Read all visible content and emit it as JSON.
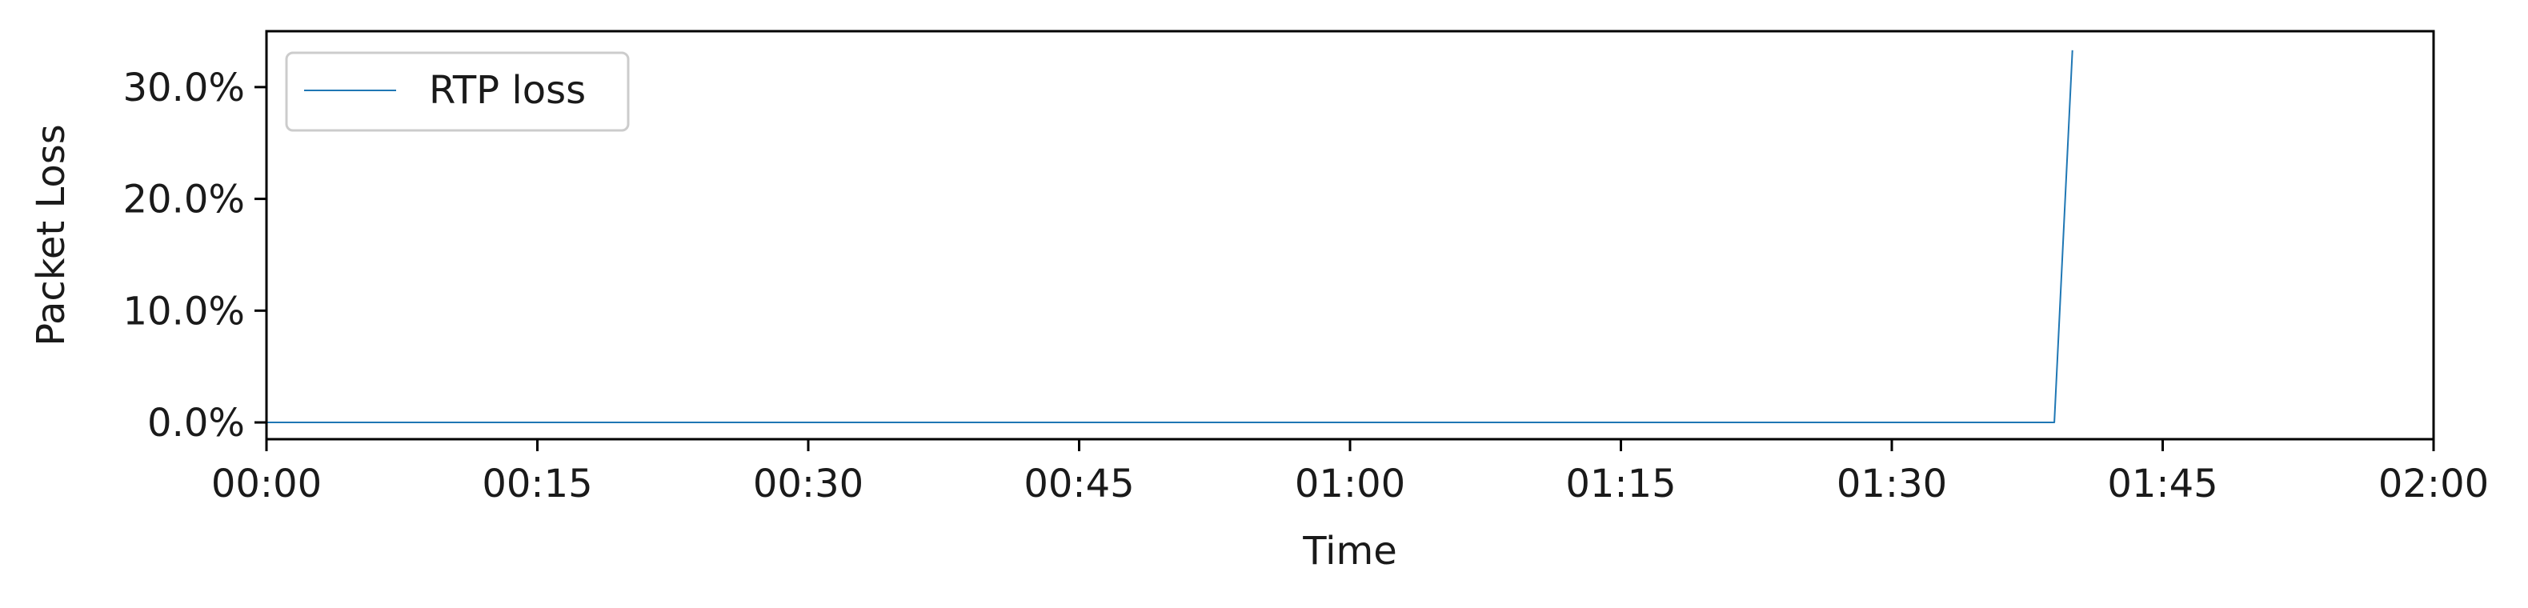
{
  "chart_data": {
    "type": "line",
    "title": "",
    "xlabel": "Time",
    "ylabel": "Packet Loss",
    "x_unit": "hh:mm",
    "xlim": [
      "00:00",
      "02:00"
    ],
    "ylim": [
      -1.5,
      35.0
    ],
    "x_ticks": [
      "00:00",
      "00:15",
      "00:30",
      "00:45",
      "01:00",
      "01:15",
      "01:30",
      "01:45",
      "02:00"
    ],
    "y_ticks": [
      0.0,
      10.0,
      20.0,
      30.0
    ],
    "y_tick_labels": [
      "0.0%",
      "10.0%",
      "20.0%",
      "30.0%"
    ],
    "grid": false,
    "legend_position": "top-left",
    "series": [
      {
        "name": "RTP loss",
        "color": "#1f77b4",
        "x": [
          "00:00",
          "01:39",
          "01:40"
        ],
        "values": [
          0.0,
          0.0,
          33.3
        ]
      }
    ]
  }
}
